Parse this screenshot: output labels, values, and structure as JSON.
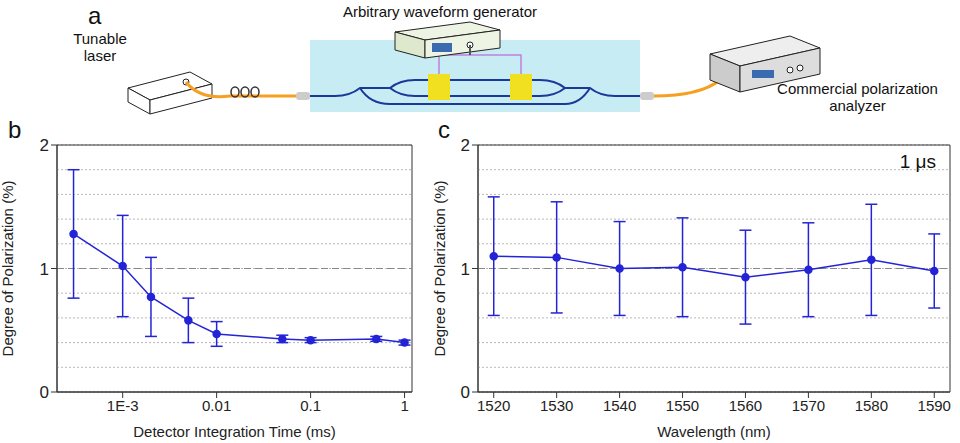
{
  "diagram": {
    "panel": "a",
    "labels": {
      "laser": "Tunable laser",
      "generator": "Arbitrary waveform generator",
      "analyzer": "Commercial polarization analyzer"
    }
  },
  "chart_data": [
    {
      "panel": "b",
      "type": "line",
      "x_label": "Detector Integration Time (ms)",
      "y_label": "Degree of Polarization (%)",
      "log": "x",
      "x": [
        0.0003,
        0.001,
        0.002,
        0.005,
        0.01,
        0.05,
        0.1,
        0.5,
        1
      ],
      "values": [
        1.28,
        1.02,
        0.77,
        0.58,
        0.47,
        0.43,
        0.42,
        0.43,
        0.4
      ],
      "errors": [
        0.52,
        0.41,
        0.32,
        0.18,
        0.1,
        0.03,
        0.02,
        0.02,
        0.02
      ],
      "color": "#2424d6",
      "marker": "circle",
      "xlim": [
        0.0002,
        1.2
      ],
      "xticks": [
        {
          "value": 0.001,
          "label": "1E-3"
        },
        0.01,
        0.1,
        1
      ],
      "ylim": [
        0,
        2
      ],
      "yticks": [
        0,
        1,
        2
      ],
      "minor_yticks": [
        0.2,
        0.4,
        0.6,
        0.8,
        1.2,
        1.4,
        1.6,
        1.8
      ],
      "reference_y": 1,
      "grid": true
    },
    {
      "panel": "c",
      "type": "line",
      "x_label": "Wavelength (nm)",
      "y_label": "Degree of Polarization (%)",
      "annotation": "1 μs",
      "x": [
        1520,
        1530,
        1540,
        1550,
        1560,
        1570,
        1580,
        1590
      ],
      "values": [
        1.1,
        1.09,
        1.0,
        1.01,
        0.93,
        0.99,
        1.07,
        0.98
      ],
      "errors": [
        0.48,
        0.45,
        0.38,
        0.4,
        0.38,
        0.38,
        0.45,
        0.3
      ],
      "color": "#2424d6",
      "marker": "circle",
      "xlim": [
        1517.5,
        1592.5
      ],
      "xticks": [
        1520,
        1530,
        1540,
        1550,
        1560,
        1570,
        1580,
        1590
      ],
      "ylim": [
        0,
        2
      ],
      "yticks": [
        0,
        1,
        2
      ],
      "minor_yticks": [
        0.2,
        0.4,
        0.6,
        0.8,
        1.2,
        1.4,
        1.6,
        1.8
      ],
      "reference_y": 1,
      "grid": true
    }
  ]
}
